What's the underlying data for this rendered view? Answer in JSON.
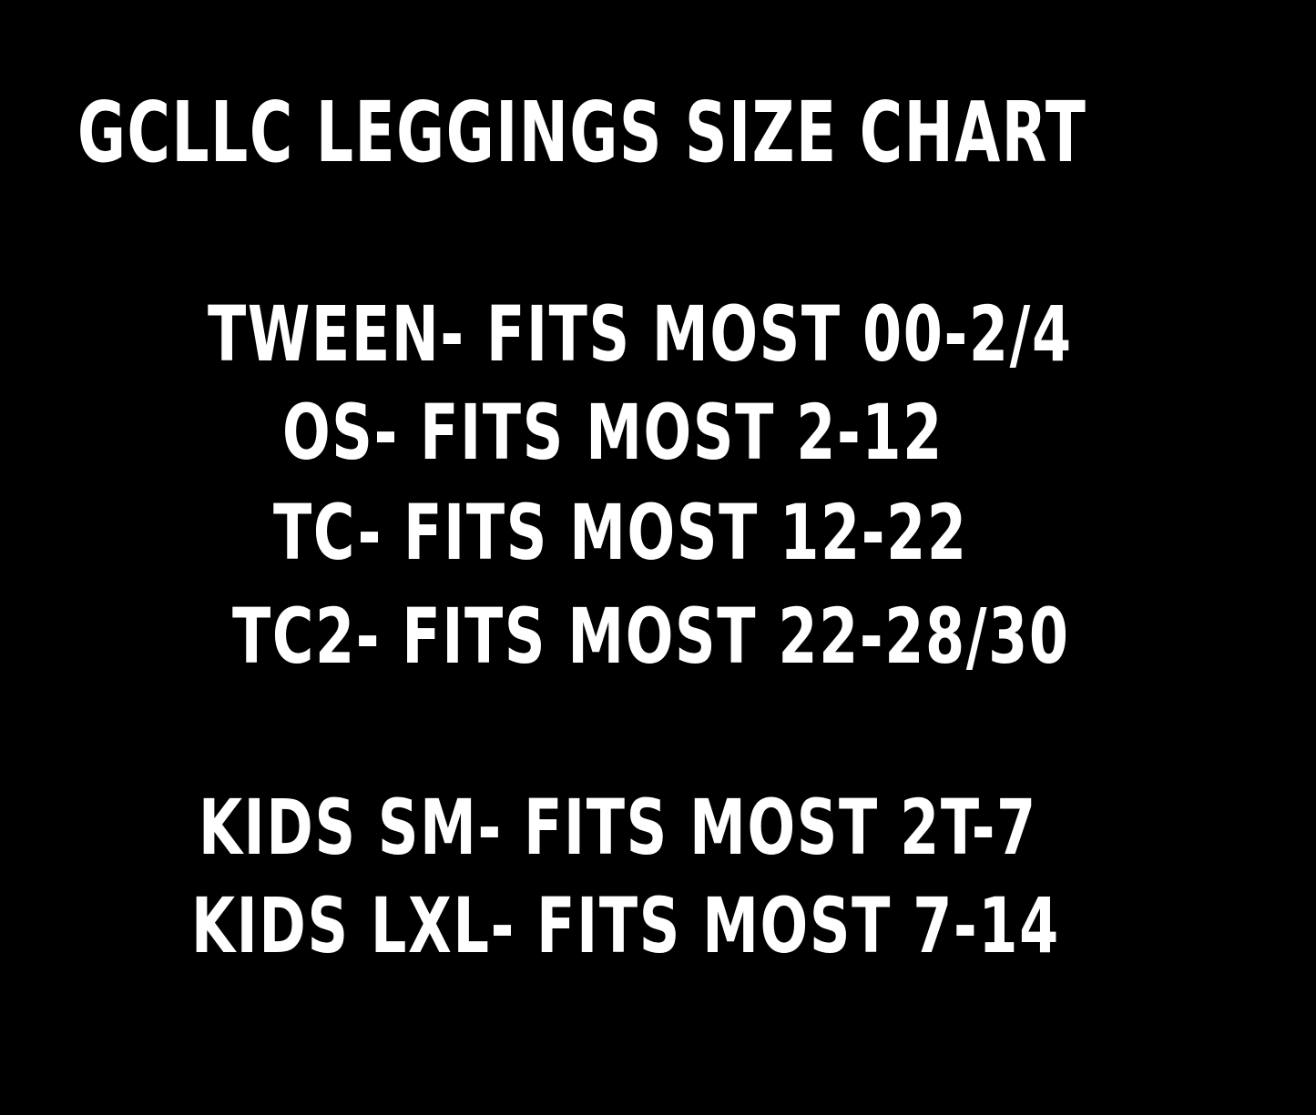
{
  "title": "GCLLC LEGGINGS SIZE CHART",
  "adult_sizes": [
    "TWEEN- FITS MOST 00-2/4",
    "OS- FITS MOST 2-12",
    "TC- FITS MOST 12-22",
    "TC2- FITS MOST 22-28/30"
  ],
  "kids_sizes": [
    "KIDS SM- FITS MOST 2T-7",
    "KIDS LXL- FITS MOST 7-14"
  ],
  "colors": {
    "background": "#000000",
    "text": "#ffffff"
  }
}
